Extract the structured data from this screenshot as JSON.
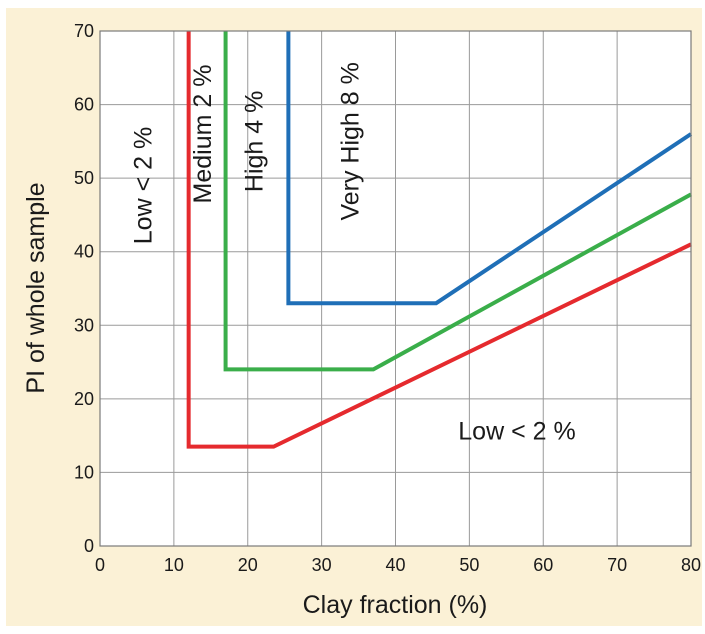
{
  "chart_data": {
    "type": "line",
    "xlabel": "Clay fraction (%)",
    "ylabel": "PI of whole sample",
    "xlim": [
      0,
      80
    ],
    "ylim": [
      0,
      70
    ],
    "x_ticks": [
      0,
      10,
      20,
      30,
      40,
      50,
      60,
      70,
      80
    ],
    "y_ticks": [
      0,
      10,
      20,
      30,
      40,
      50,
      60,
      70
    ],
    "grid": true,
    "background": "#fbf1d6",
    "series": [
      {
        "color": "#e52a2e",
        "points": [
          [
            12,
            70
          ],
          [
            12,
            13.5
          ],
          [
            23.5,
            13.5
          ],
          [
            80,
            41
          ]
        ]
      },
      {
        "color": "#3aae4a",
        "points": [
          [
            17,
            70
          ],
          [
            17,
            24
          ],
          [
            37,
            24
          ],
          [
            80,
            47.8
          ]
        ]
      },
      {
        "color": "#1f6fb7",
        "points": [
          [
            25.5,
            70
          ],
          [
            25.5,
            33
          ],
          [
            45.5,
            33
          ],
          [
            80,
            56
          ]
        ]
      }
    ],
    "annotations": [
      {
        "text": "Low < 2 %",
        "x": 7,
        "y": 49,
        "rotation": -90
      },
      {
        "text": "Medium 2 %",
        "x": 15,
        "y": 56,
        "rotation": -90
      },
      {
        "text": "High 4 %",
        "x": 22,
        "y": 55,
        "rotation": -90
      },
      {
        "text": "Very High 8 %",
        "x": 35,
        "y": 55,
        "rotation": -90
      },
      {
        "text": "Low < 2 %",
        "x": 48.5,
        "y": 14.5,
        "rotation": 0
      }
    ]
  }
}
